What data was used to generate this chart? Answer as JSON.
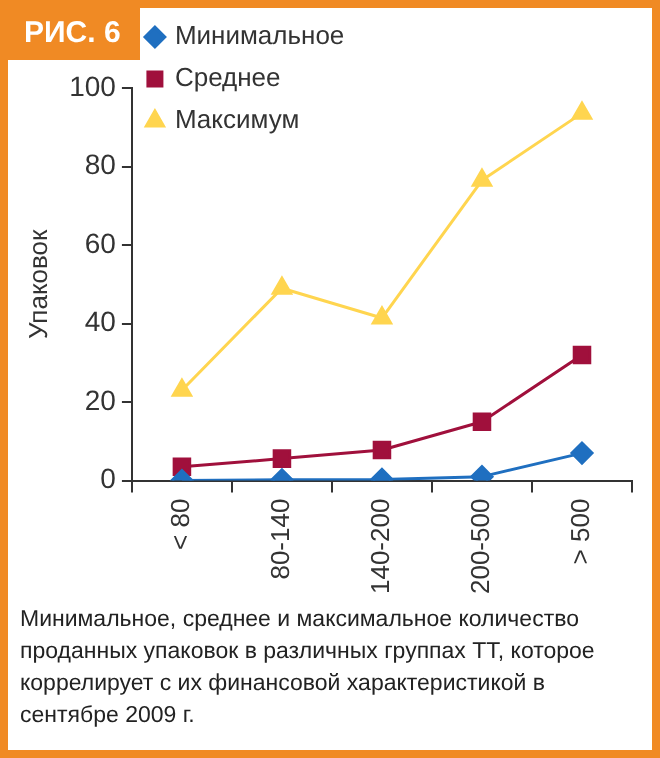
{
  "chart_data": {
    "type": "line",
    "categories": [
      "< 80",
      "80-140",
      "140-200",
      "200-500",
      "> 500"
    ],
    "ylabel": "Упаковок",
    "ylim": [
      0,
      100
    ],
    "yticks": [
      0,
      20,
      40,
      60,
      80,
      100
    ],
    "grid": false,
    "legend": "top left",
    "series": [
      {
        "name": "Минимальное",
        "color": "#1f6fc0",
        "marker": "diamond",
        "values": [
          0,
          0.2,
          0.3,
          1,
          7
        ]
      },
      {
        "name": "Среднее",
        "color": "#a0103c",
        "marker": "square",
        "values": [
          3.5,
          5.6,
          7.8,
          15,
          32
        ]
      },
      {
        "name": "Максимум",
        "color": "#ffd54f",
        "marker": "triangle",
        "values": [
          23,
          49,
          41.4,
          76.5,
          93.6
        ]
      }
    ],
    "annotations": [
      "РИС. 6",
      "Минимальное, среднее и максимальное количество проданных упаковок в различных группах ТТ, которое коррелирует с их финансовой характеристикой в сентябре 2009 г."
    ]
  }
}
